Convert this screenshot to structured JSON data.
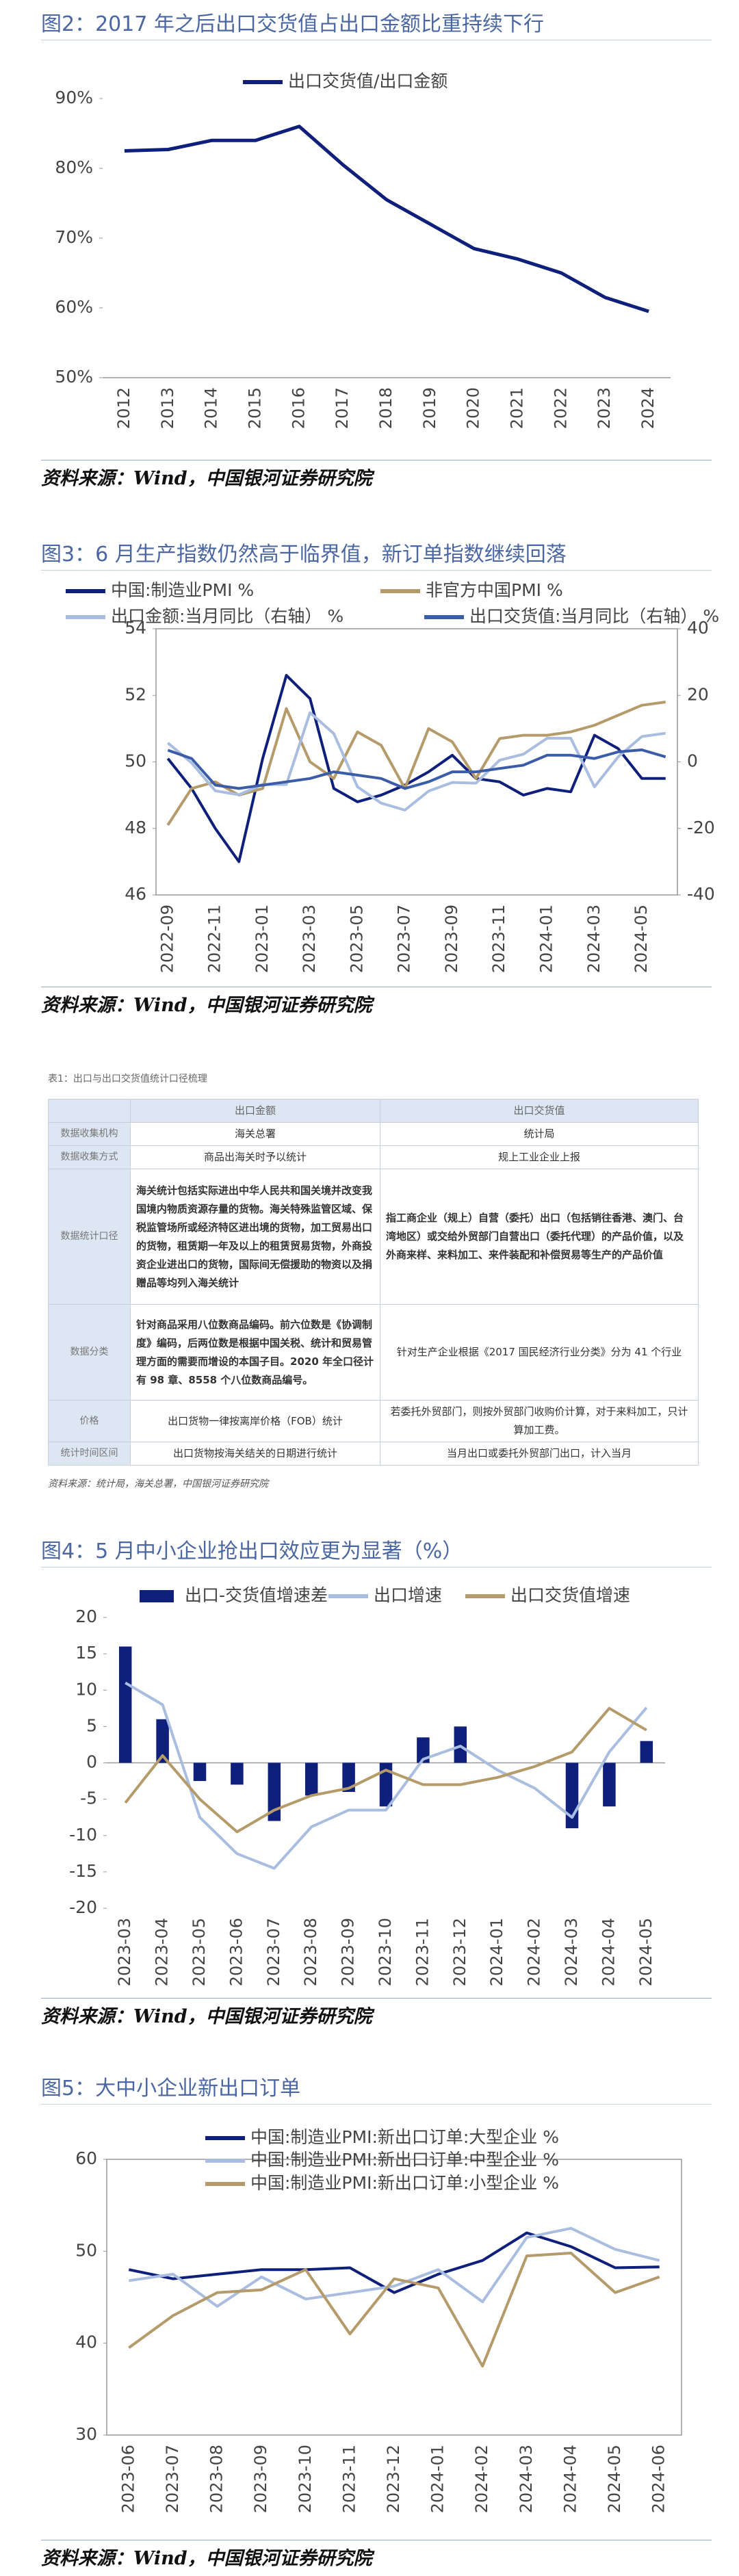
{
  "chart_data": [
    {
      "type": "line",
      "title": "图2：2017 年之后出口交货值占出口金额比重持续下行",
      "categories": [
        "2012",
        "2013",
        "2014",
        "2015",
        "2016",
        "2017",
        "2018",
        "2019",
        "2020",
        "2021",
        "2022",
        "2023",
        "2024"
      ],
      "series": [
        {
          "name": "出口交货值/出口金额",
          "color": "#0e1f7c",
          "values": [
            82.5,
            82.7,
            84,
            84,
            86,
            80.5,
            75.5,
            72,
            68.5,
            67,
            65,
            61.5,
            59.5
          ]
        }
      ],
      "ylim": [
        50,
        90
      ],
      "yticks": [
        {
          "value": 50,
          "label": "50%"
        },
        {
          "value": 60,
          "label": "60%"
        },
        {
          "value": 70,
          "label": "70%"
        },
        {
          "value": 80,
          "label": "80%"
        },
        {
          "value": 90,
          "label": "90%"
        }
      ],
      "source": "资料来源：Wind，中国银河证券研究院"
    },
    {
      "type": "line",
      "title": "图3：6 月生产指数仍然高于临界值，新订单指数继续回落",
      "categories": [
        "2022-09",
        null,
        "2022-11",
        null,
        "2023-01",
        null,
        "2023-03",
        null,
        "2023-05",
        null,
        "2023-07",
        null,
        "2023-09",
        null,
        "2023-11",
        null,
        "2024-01",
        null,
        "2024-03",
        null,
        "2024-05",
        null
      ],
      "series": [
        {
          "name": "中国:制造业PMI %",
          "color": "#0e1f7c",
          "values": [
            50.1,
            49.2,
            48.0,
            47.0,
            50.1,
            52.6,
            51.9,
            49.2,
            48.8,
            49.0,
            49.3,
            49.7,
            50.2,
            49.5,
            49.4,
            49.0,
            49.2,
            49.1,
            50.8,
            50.4,
            49.5,
            49.5
          ]
        },
        {
          "name": "非官方中国PMI %",
          "color": "#b59a6a",
          "values": [
            48.1,
            49.2,
            49.4,
            49.0,
            49.2,
            51.6,
            50.0,
            49.5,
            50.9,
            50.5,
            49.2,
            51.0,
            50.6,
            49.5,
            50.7,
            50.8,
            50.8,
            50.9,
            51.1,
            51.4,
            51.7,
            51.8
          ]
        },
        {
          "name": "出口金额:当月同比（右轴） %",
          "color": "#a9bde0",
          "values": [
            5.7,
            -0.3,
            -8.7,
            -9.9,
            -6.8,
            -6.8,
            14.8,
            8.5,
            -7.5,
            -12.4,
            -14.5,
            -8.8,
            -6.2,
            -6.4,
            0.5,
            2.3,
            7.1,
            7.1,
            -7.5,
            1.5,
            7.6,
            8.6
          ],
          "axis": "y2"
        },
        {
          "name": "出口交货值:当月同比（右轴） %",
          "color": "#3b5ca8",
          "values": [
            3.5,
            1,
            -7,
            -8,
            -7,
            -6,
            -5,
            -3,
            -4,
            -5,
            -8,
            -6,
            -3,
            -3,
            -2,
            -1,
            2,
            2,
            1,
            3,
            3.6,
            1.5
          ],
          "axis": "y2"
        }
      ],
      "ylim": [
        46,
        54
      ],
      "yticks": [
        46,
        48,
        50,
        52,
        54
      ],
      "y2lim": [
        -40,
        40
      ],
      "y2ticks": [
        -40,
        -20,
        0,
        20,
        40
      ],
      "source": "资料来源：Wind，中国银河证券研究院"
    },
    {
      "type": "bar",
      "title": "图4：5 月中小企业抢出口效应更为显著（%）",
      "categories": [
        "2023-03",
        "2023-04",
        "2023-05",
        "2023-06",
        "2023-07",
        "2023-08",
        "2023-09",
        "2023-10",
        "2023-11",
        "2023-12",
        "2024-01",
        "2024-02",
        "2024-03",
        "2024-04",
        "2024-05"
      ],
      "series": [
        {
          "name": "出口-交货值增速差",
          "color": "#0e1f7c",
          "values": [
            16,
            6,
            -2.5,
            -3,
            -8,
            -4.5,
            -4,
            -6,
            3.5,
            5,
            null,
            null,
            -9,
            -6,
            3
          ]
        },
        {
          "name": "出口增速",
          "color": "#a9bde0",
          "type": "line",
          "values": [
            11,
            8,
            -7.5,
            -12.5,
            -14.5,
            -8.8,
            -6.5,
            -6.5,
            0.5,
            2.3,
            -1,
            -3.5,
            -7.5,
            1.5,
            7.6
          ]
        },
        {
          "name": "出口交货值增速",
          "color": "#b59a6a",
          "type": "line",
          "values": [
            -5.5,
            1,
            -5,
            -9.5,
            -6.5,
            -4.5,
            -3.5,
            -1,
            -3,
            -3,
            -2,
            -0.5,
            1.5,
            7.5,
            4.5
          ]
        }
      ],
      "ylim": [
        -20,
        20
      ],
      "yticks": [
        -20,
        -15,
        -10,
        -5,
        0,
        5,
        10,
        15,
        20
      ],
      "source": "资料来源：Wind，中国银河证券研究院"
    },
    {
      "type": "line",
      "title": "图5：大中小企业新出口订单",
      "categories": [
        "2023-06",
        "2023-07",
        "2023-08",
        "2023-09",
        "2023-10",
        "2023-11",
        "2023-12",
        "2024-01",
        "2024-02",
        "2024-03",
        "2024-04",
        "2024-05",
        "2024-06"
      ],
      "series": [
        {
          "name": "中国:制造业PMI:新出口订单:大型企业 %",
          "color": "#0e1f7c",
          "values": [
            48,
            47,
            47.5,
            48,
            48,
            48.2,
            45.5,
            47.5,
            49,
            52,
            50.5,
            48.2,
            48.3
          ]
        },
        {
          "name": "中国:制造业PMI:新出口订单:中型企业 %",
          "color": "#a9bde0",
          "values": [
            46.8,
            47.5,
            44,
            47.2,
            44.8,
            45.5,
            46.2,
            48,
            44.5,
            51.5,
            52.5,
            50.2,
            49
          ]
        },
        {
          "name": "中国:制造业PMI:新出口订单:小型企业 %",
          "color": "#b59a6a",
          "values": [
            39.5,
            43,
            45.5,
            45.8,
            48,
            41,
            47,
            46,
            37.5,
            49.5,
            49.8,
            45.5,
            47.2
          ]
        }
      ],
      "ylim": [
        30,
        60
      ],
      "yticks": [
        30,
        40,
        50,
        60
      ],
      "source": "资料来源：Wind，中国银河证券研究院"
    }
  ],
  "table": {
    "title": "表1：出口与出口交货值统计口径梳理",
    "header": [
      "出口金额",
      "出口交货值"
    ],
    "rows": [
      [
        "数据收集机构",
        "海关总署",
        "统计局"
      ],
      [
        "数据收集方式",
        "商品出海关时予以统计",
        "规上工业企业上报"
      ],
      [
        "数据统计口径",
        "海关统计包括实际进出中华人民共和国关境并改变我国境内物质资源存量的货物。海关特殊监管区域、保税监管场所或经济特区进出境的货物，加工贸易出口的货物，租赁期一年及以上的租赁贸易货物，外商投资企业进出口的货物，国际间无偿援助的物资以及捐赠品等均列入海关统计",
        "指工商企业（规上）自营（委托）出口（包括销往香港、澳门、台湾地区）或交给外贸部门自营出口（委托代理）的产品价值，以及外商来样、来料加工、来件装配和补偿贸易等生产的产品价值"
      ],
      [
        "数据分类",
        "针对商品采用八位数商品编码。前六位数是《协调制度》编码，后两位数是根据中国关税、统计和贸易管理方面的需要而增设的本国子目。2020 年全口径计有 98 章、8558 个八位数商品编号。",
        "针对生产企业根据《2017 国民经济行业分类》分为 41 个行业"
      ],
      [
        "价格",
        "出口货物一律按离岸价格（FOB）统计",
        "若委托外贸部门，则按外贸部门收购价计算，对于来料加工，只计算加工费。"
      ],
      [
        "统计时间区间",
        "出口货物按海关结关的日期进行统计",
        "当月出口或委托外贸部门出口，计入当月"
      ]
    ],
    "source": "资料来源：统计局，海关总署，中国银河证券研究院"
  }
}
